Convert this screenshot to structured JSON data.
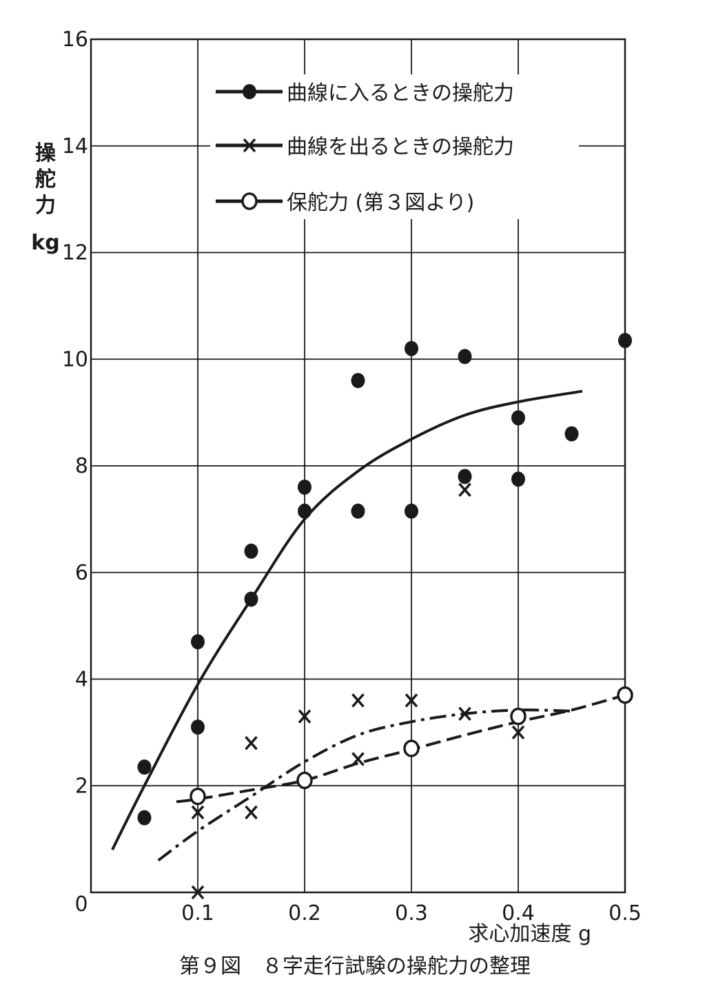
{
  "chart_data": {
    "type": "scatter",
    "title": "",
    "caption": "第９図　８字走行試験の操舵力の整理",
    "xlabel": "求心加速度 g",
    "ylabel": [
      "操",
      "舵",
      "力",
      "kg"
    ],
    "xlim": [
      0,
      0.5
    ],
    "ylim": [
      0,
      16
    ],
    "xticks": [
      "0",
      "0.1",
      "0.2",
      "0.3",
      "0.4",
      "0.5"
    ],
    "xtick_values": [
      0,
      0.1,
      0.2,
      0.3,
      0.4,
      0.5
    ],
    "yticks": [
      "2",
      "4",
      "6",
      "8",
      "10",
      "12",
      "14",
      "16"
    ],
    "ytick_values": [
      2,
      4,
      6,
      8,
      10,
      12,
      14,
      16
    ],
    "grid": true,
    "legend_position": "top",
    "colors": {
      "ink": "#1a1a1a",
      "background": "#ffffff"
    },
    "series": [
      {
        "name": "曲線に入るときの操舵力",
        "marker": "filled-circle",
        "line": "solid",
        "points": [
          [
            0.05,
            2.35
          ],
          [
            0.05,
            1.4
          ],
          [
            0.1,
            4.7
          ],
          [
            0.1,
            3.1
          ],
          [
            0.15,
            6.4
          ],
          [
            0.15,
            5.5
          ],
          [
            0.2,
            7.6
          ],
          [
            0.2,
            7.15
          ],
          [
            0.25,
            9.6
          ],
          [
            0.25,
            7.15
          ],
          [
            0.3,
            10.2
          ],
          [
            0.3,
            7.15
          ],
          [
            0.35,
            10.05
          ],
          [
            0.35,
            7.8
          ],
          [
            0.4,
            8.9
          ],
          [
            0.4,
            7.75
          ],
          [
            0.45,
            8.6
          ],
          [
            0.5,
            10.35
          ]
        ],
        "curve": [
          [
            0.02,
            0.8
          ],
          [
            0.05,
            2.0
          ],
          [
            0.1,
            3.9
          ],
          [
            0.15,
            5.5
          ],
          [
            0.2,
            7.0
          ],
          [
            0.25,
            7.9
          ],
          [
            0.3,
            8.5
          ],
          [
            0.35,
            8.95
          ],
          [
            0.4,
            9.2
          ],
          [
            0.46,
            9.4
          ]
        ]
      },
      {
        "name": "曲線を出るときの操舵力",
        "marker": "cross",
        "line": "dash-dot",
        "points": [
          [
            0.1,
            1.5
          ],
          [
            0.1,
            0.0
          ],
          [
            0.15,
            2.8
          ],
          [
            0.15,
            1.5
          ],
          [
            0.2,
            3.3
          ],
          [
            0.25,
            3.6
          ],
          [
            0.25,
            2.5
          ],
          [
            0.3,
            3.6
          ],
          [
            0.35,
            3.35
          ],
          [
            0.35,
            7.55
          ],
          [
            0.4,
            3.0
          ]
        ],
        "curve": [
          [
            0.063,
            0.6
          ],
          [
            0.1,
            1.15
          ],
          [
            0.15,
            1.8
          ],
          [
            0.2,
            2.45
          ],
          [
            0.25,
            2.95
          ],
          [
            0.3,
            3.2
          ],
          [
            0.35,
            3.35
          ],
          [
            0.4,
            3.42
          ],
          [
            0.45,
            3.4
          ]
        ]
      },
      {
        "name": "保舵力 (第３図より)",
        "marker": "open-circle",
        "line": "dashed",
        "points": [
          [
            0.1,
            1.8
          ],
          [
            0.2,
            2.1
          ],
          [
            0.3,
            2.7
          ],
          [
            0.4,
            3.3
          ],
          [
            0.5,
            3.7
          ]
        ],
        "curve": [
          [
            0.08,
            1.7
          ],
          [
            0.1,
            1.75
          ],
          [
            0.15,
            1.92
          ],
          [
            0.2,
            2.1
          ],
          [
            0.25,
            2.42
          ],
          [
            0.3,
            2.68
          ],
          [
            0.35,
            2.95
          ],
          [
            0.4,
            3.2
          ],
          [
            0.45,
            3.42
          ],
          [
            0.5,
            3.7
          ]
        ]
      }
    ]
  }
}
